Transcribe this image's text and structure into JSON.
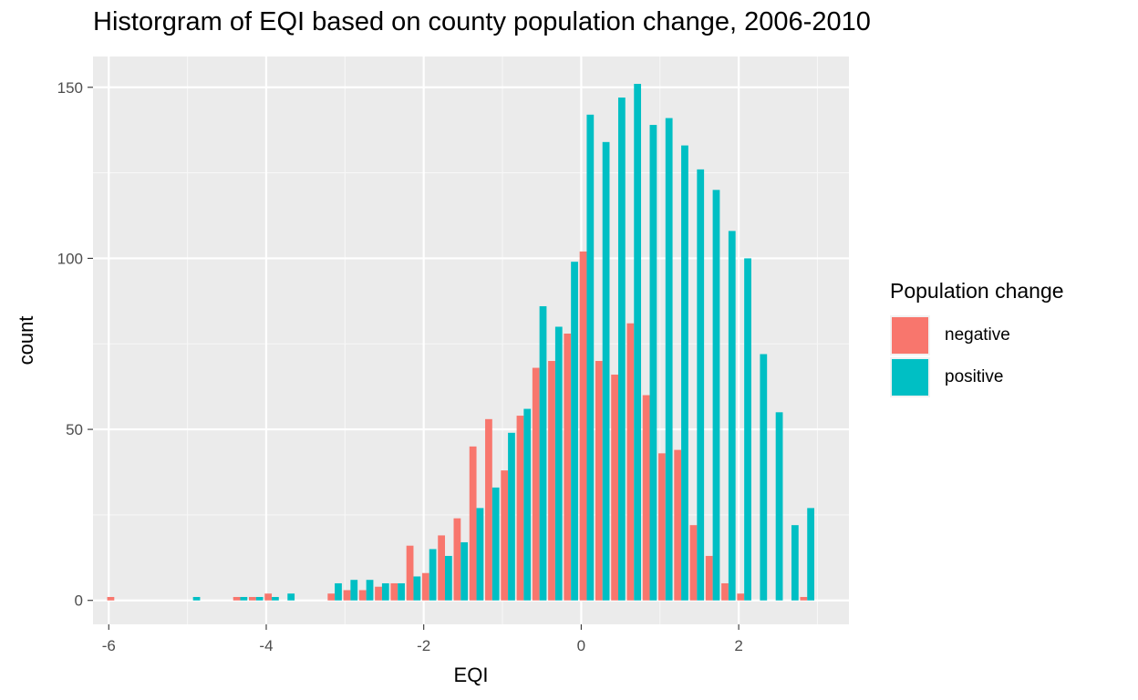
{
  "chart_data": {
    "type": "bar",
    "title": "Historgram of EQI based on county population change, 2006-2010",
    "xlabel": "EQI",
    "ylabel": "count",
    "xlim": [
      -6.2,
      3.4
    ],
    "ylim": [
      -7,
      159
    ],
    "x_ticks": [
      -6,
      -4,
      -2,
      0,
      2
    ],
    "x_tick_labels": [
      "-6",
      "-4",
      "-2",
      "0",
      "2"
    ],
    "y_ticks": [
      0,
      50,
      100,
      150
    ],
    "y_tick_labels": [
      "0",
      "50",
      "100",
      "150"
    ],
    "grid": true,
    "legend_position": "right",
    "legend_title": "Population change",
    "bin_width": 0.2,
    "bin_centers": [
      -5.93,
      -5.73,
      -5.53,
      -5.33,
      -5.13,
      -4.93,
      -4.73,
      -4.53,
      -4.33,
      -4.13,
      -3.93,
      -3.73,
      -3.53,
      -3.33,
      -3.13,
      -2.93,
      -2.73,
      -2.53,
      -2.33,
      -2.13,
      -1.93,
      -1.73,
      -1.53,
      -1.33,
      -1.13,
      -0.93,
      -0.73,
      -0.53,
      -0.33,
      -0.13,
      0.07,
      0.27,
      0.47,
      0.67,
      0.87,
      1.07,
      1.27,
      1.47,
      1.67,
      1.87,
      2.07,
      2.27,
      2.47,
      2.67,
      2.87
    ],
    "series": [
      {
        "name": "negative",
        "color": "#f8766d",
        "values": [
          1,
          0,
          0,
          0,
          0,
          0,
          0,
          0,
          1,
          1,
          2,
          0,
          0,
          0,
          2,
          3,
          3,
          4,
          5,
          16,
          8,
          19,
          24,
          45,
          53,
          38,
          54,
          68,
          70,
          78,
          102,
          70,
          66,
          81,
          60,
          43,
          44,
          22,
          13,
          5,
          2,
          0,
          0,
          0,
          1
        ]
      },
      {
        "name": "positive",
        "color": "#00bfc4",
        "values": [
          0,
          0,
          0,
          0,
          0,
          1,
          0,
          0,
          1,
          1,
          1,
          2,
          0,
          0,
          5,
          6,
          6,
          5,
          5,
          7,
          15,
          13,
          17,
          27,
          33,
          49,
          56,
          86,
          80,
          99,
          142,
          134,
          147,
          151,
          139,
          141,
          133,
          126,
          120,
          108,
          100,
          72,
          55,
          22,
          27
        ]
      }
    ]
  }
}
